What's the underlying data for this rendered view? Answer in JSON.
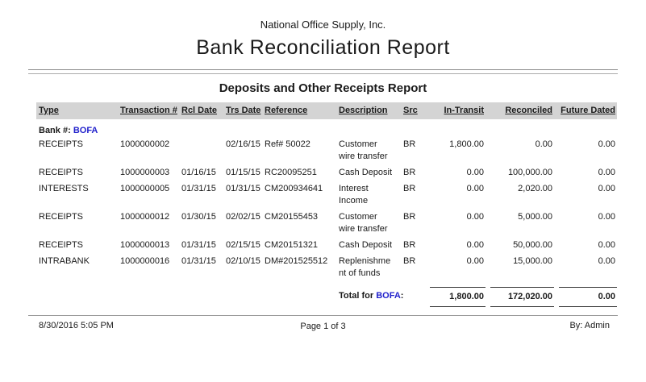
{
  "report": {
    "company": "National Office Supply, Inc.",
    "title": "Bank Reconciliation Report",
    "section_title": "Deposits and Other Receipts Report"
  },
  "table": {
    "columns": [
      "Type",
      "Transaction #",
      "Rcl Date",
      "Trs Date",
      "Reference",
      "Description",
      "Src",
      "In-Transit",
      "Reconciled",
      "Future Dated"
    ],
    "bank_label": "Bank #:",
    "bank_value": "BOFA",
    "rows": [
      {
        "type": "RECEIPTS",
        "transaction": "1000000002",
        "rcl_date": "",
        "trs_date": "02/16/15",
        "reference": "Ref# 50022",
        "desc_lines": [
          "Customer",
          "wire transfer"
        ],
        "src": "BR",
        "in_transit": "1,800.00",
        "reconciled": "0.00",
        "future_dated": "0.00"
      },
      {
        "type": "RECEIPTS",
        "transaction": "1000000003",
        "rcl_date": "01/16/15",
        "trs_date": "01/15/15",
        "reference": "RC20095251",
        "desc_lines": [
          "Cash Deposit",
          ""
        ],
        "src": "BR",
        "in_transit": "0.00",
        "reconciled": "100,000.00",
        "future_dated": "0.00"
      },
      {
        "type": "INTERESTS",
        "transaction": "1000000005",
        "rcl_date": "01/31/15",
        "trs_date": "01/31/15",
        "reference": "CM200934641",
        "desc_lines": [
          "Interest",
          "Income"
        ],
        "src": "BR",
        "in_transit": "0.00",
        "reconciled": "2,020.00",
        "future_dated": "0.00"
      },
      {
        "type": "RECEIPTS",
        "transaction": "1000000012",
        "rcl_date": "01/30/15",
        "trs_date": "02/02/15",
        "reference": "CM20155453",
        "desc_lines": [
          "Customer",
          "wire transfer"
        ],
        "src": "BR",
        "in_transit": "0.00",
        "reconciled": "5,000.00",
        "future_dated": "0.00"
      },
      {
        "type": "RECEIPTS",
        "transaction": "1000000013",
        "rcl_date": "01/31/15",
        "trs_date": "02/15/15",
        "reference": "CM20151321",
        "desc_lines": [
          "Cash Deposit",
          ""
        ],
        "src": "BR",
        "in_transit": "0.00",
        "reconciled": "50,000.00",
        "future_dated": "0.00"
      },
      {
        "type": "INTRABANK",
        "transaction": "1000000016",
        "rcl_date": "01/31/15",
        "trs_date": "02/10/15",
        "reference": "DM#201525512",
        "desc_lines": [
          "Replenishme",
          "nt of funds"
        ],
        "src": "BR",
        "in_transit": "0.00",
        "reconciled": "15,000.00",
        "future_dated": "0.00"
      }
    ],
    "total": {
      "label": "Total for ",
      "bank": "BOFA",
      "suffix": ":",
      "in_transit": "1,800.00",
      "reconciled": "172,020.00",
      "future_dated": "0.00"
    }
  },
  "footer": {
    "datetime": "8/30/2016 5:05 PM",
    "page": "Page 1 of 3",
    "by": "By: Admin"
  },
  "colors": {
    "accent_blue": "#2222cc",
    "header_bg": "#d4d4d4",
    "rule_gray": "#8c8c8c"
  }
}
